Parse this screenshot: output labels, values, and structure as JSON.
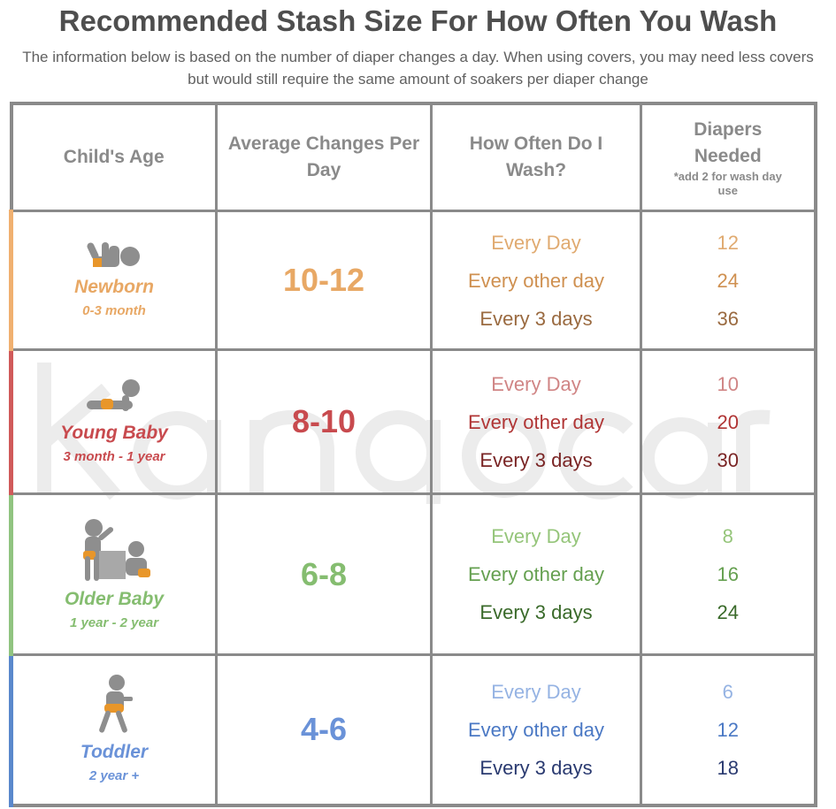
{
  "title": "Recommended Stash Size For How Often You Wash",
  "subtitle": "The information below is based on the number of diaper changes a day. When using covers, you may need less covers but would still require the same amount of soakers per diaper change",
  "watermark": "kangacare",
  "headers": {
    "age": "Child's Age",
    "avg": "Average Changes Per Day",
    "wash": "How Often Do I Wash?",
    "need": "Diapers Needed",
    "need_note": "*add 2 for wash day use"
  },
  "rows": [
    {
      "name": "Newborn",
      "range": "0-3 month",
      "avg": "10-12",
      "icon": "newborn-icon",
      "accent": "#f0b070",
      "name_color": "#e8a865",
      "wash": [
        "Every Day",
        "Every other day",
        "Every 3 days"
      ],
      "need": [
        "12",
        "24",
        "36"
      ],
      "shades": [
        "#e0aa70",
        "#cf9050",
        "#9a6a40"
      ]
    },
    {
      "name": "Young Baby",
      "range": "3 month - 1 year",
      "avg": "8-10",
      "icon": "crawling-baby-icon",
      "accent": "#d05a5a",
      "name_color": "#c84a4e",
      "wash": [
        "Every Day",
        "Every other day",
        "Every 3 days"
      ],
      "need": [
        "10",
        "20",
        "30"
      ],
      "shades": [
        "#d08585",
        "#b03535",
        "#7a2525"
      ]
    },
    {
      "name": "Older Baby",
      "range": "1 year - 2 year",
      "avg": "6-8",
      "icon": "older-baby-icon",
      "accent": "#90c480",
      "name_color": "#85bd70",
      "wash": [
        "Every Day",
        "Every other day",
        "Every 3 days"
      ],
      "need": [
        "8",
        "16",
        "24"
      ],
      "shades": [
        "#95c57a",
        "#65a050",
        "#3a6a2a"
      ]
    },
    {
      "name": "Toddler",
      "range": "2 year +",
      "avg": "4-6",
      "icon": "toddler-icon",
      "accent": "#5a88cc",
      "name_color": "#6a92d8",
      "wash": [
        "Every Day",
        "Every other day",
        "Every 3 days"
      ],
      "need": [
        "6",
        "12",
        "18"
      ],
      "shades": [
        "#95b3e3",
        "#4a78c4",
        "#2a3a70"
      ]
    }
  ]
}
